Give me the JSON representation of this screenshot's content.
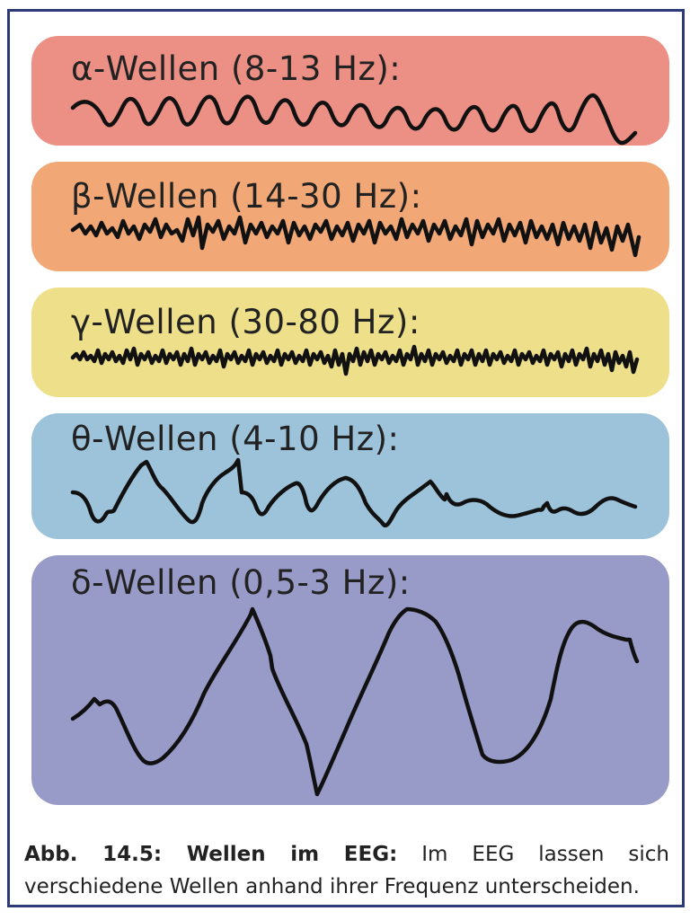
{
  "panels": [
    {
      "id": "alpha",
      "label": "α-Wellen (8-13 Hz):",
      "color": "#ec8f84",
      "cycles": 13,
      "amplitude": 0.6,
      "noise": 0.0,
      "shape": "sine"
    },
    {
      "id": "beta",
      "label": "β-Wellen (14-30 Hz):",
      "color": "#f1a876",
      "cycles": 52,
      "amplitude": 0.5,
      "noise": 0.5,
      "shape": "zigzag"
    },
    {
      "id": "gamma",
      "label": "γ-Wellen (30-80 Hz):",
      "color": "#eedf8a",
      "cycles": 95,
      "amplitude": 0.3,
      "noise": 0.6,
      "shape": "zigzag"
    },
    {
      "id": "theta",
      "label": "θ-Wellen (4-10 Hz):",
      "color": "#9dc3da",
      "cycles": 7,
      "amplitude": 0.7,
      "noise": 0.2,
      "shape": "irregular"
    },
    {
      "id": "delta",
      "label": "δ-Wellen (0,5-3 Hz):",
      "color": "#989bc8",
      "cycles": 3,
      "amplitude": 1.0,
      "noise": 0.0,
      "shape": "slow"
    }
  ],
  "caption": {
    "title": "Abb. 14.5: Wellen im EEG:",
    "text": " Im EEG lassen sich verschiedene Wellen anhand ihrer Frequenz unterscheiden."
  },
  "colors": {
    "frame": "#2d3a7a",
    "text": "#222222",
    "wave": "#111111"
  }
}
